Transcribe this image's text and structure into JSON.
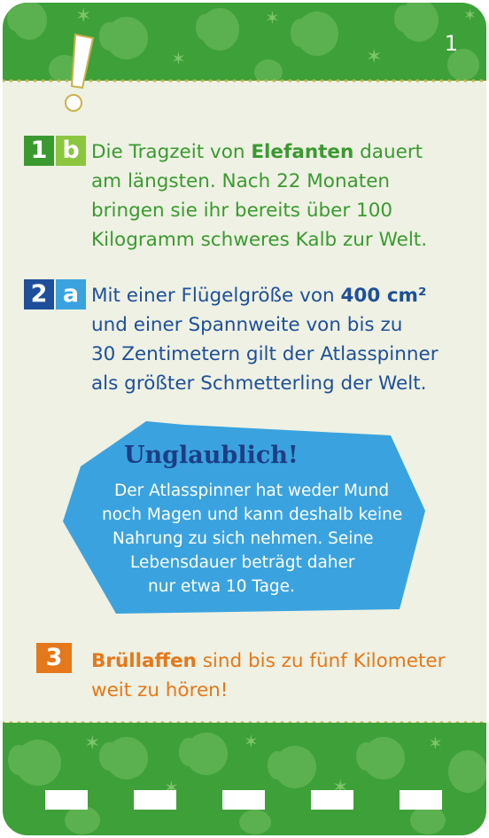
{
  "page_number": "1",
  "answers": [
    {
      "badge_num": "1",
      "badge_letter": "b",
      "lines": {
        "l1_pre": "Die Tragzeit von ",
        "l1_bold": "Elefanten",
        "l1_post": " dauert",
        "l2": "am längsten. Nach 22 Monaten",
        "l3": "bringen sie ihr bereits über 100",
        "l4": "Kilogramm schweres Kalb zur Welt."
      }
    },
    {
      "badge_num": "2",
      "badge_letter": "a",
      "lines": {
        "l1_pre": "Mit einer Flügelgröße von ",
        "l1_bold": "400 cm²",
        "l2": "und einer Spannweite von bis zu",
        "l3": "30 Zentimetern gilt der Atlasspinner",
        "l4": "als größter Schmetterling der Welt."
      }
    },
    {
      "badge_num": "3",
      "lines": {
        "l1_bold": "Brüllaffen",
        "l1_post": " sind bis zu fünf Kilometer",
        "l2": "weit zu hören!"
      }
    }
  ],
  "fact_box": {
    "title": "Unglaublich!",
    "lines": [
      "Der Atlasspinner hat weder Mund",
      "noch Magen und kann deshalb keine",
      "Nahrung zu sich nehmen. Seine",
      "Lebensdauer beträgt daher",
      "nur etwa 10 Tage."
    ]
  },
  "colors": {
    "band_green": "#3ea039",
    "card_bg": "#eef1e3",
    "answer1": "#3a9a30",
    "answer2": "#1f4f9a",
    "answer3": "#e5781a",
    "bubble": "#3aa3df"
  },
  "icons": [
    "elephant-icon",
    "star-icon",
    "exclamation-icon"
  ]
}
